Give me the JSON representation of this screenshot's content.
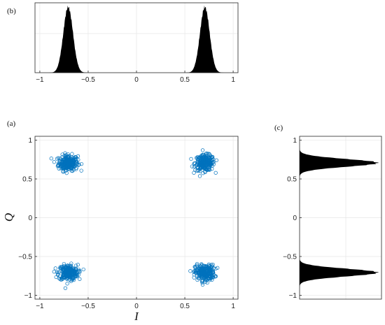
{
  "figure": {
    "panel_labels": {
      "a": "(a)",
      "b": "(b)",
      "c": "(c)"
    },
    "colors": {
      "scatter": "#0072BD",
      "density": "#000000",
      "grid": "#e6e6e6",
      "axis": "#262626"
    }
  },
  "chart_data": [
    {
      "id": "a",
      "type": "scatter",
      "title": "",
      "xlabel": "I",
      "ylabel": "Q",
      "xlim": [
        -1.05,
        1.05
      ],
      "ylim": [
        -1.05,
        1.05
      ],
      "xticks": [
        -1,
        -0.5,
        0,
        0.5,
        1
      ],
      "yticks": [
        -1,
        -0.5,
        0,
        0.5,
        1
      ],
      "xtick_labels": [
        "−1",
        "−0.5",
        "0",
        "0.5",
        "1"
      ],
      "ytick_labels": [
        "−1",
        "−0.5",
        "0",
        "0.5",
        "1"
      ],
      "grid": true,
      "marker": "open circle",
      "clusters": [
        {
          "center": [
            -0.707,
            0.707
          ],
          "spread": 0.05
        },
        {
          "center": [
            0.707,
            0.707
          ],
          "spread": 0.05
        },
        {
          "center": [
            -0.707,
            -0.707
          ],
          "spread": 0.05
        },
        {
          "center": [
            0.707,
            -0.707
          ],
          "spread": 0.05
        }
      ]
    },
    {
      "id": "b",
      "type": "area",
      "title": "",
      "xlabel": "",
      "ylabel": "",
      "xlim": [
        -1.05,
        1.05
      ],
      "xticks": [
        -1,
        -0.5,
        0,
        0.5,
        1
      ],
      "xtick_labels": [
        "−1",
        "−0.5",
        "0",
        "0.5",
        "1"
      ],
      "grid": true,
      "peaks": [
        {
          "center": -0.707,
          "spread": 0.05
        },
        {
          "center": 0.707,
          "spread": 0.05
        }
      ]
    },
    {
      "id": "c",
      "type": "area",
      "orientation": "horizontal",
      "title": "",
      "xlabel": "",
      "ylabel": "",
      "ylim": [
        -1.05,
        1.05
      ],
      "yticks": [
        -1,
        -0.5,
        0,
        0.5,
        1
      ],
      "ytick_labels": [
        "−1",
        "−0.5",
        "0",
        "0.5",
        "1"
      ],
      "grid": true,
      "peaks": [
        {
          "center": 0.707,
          "spread": 0.05
        },
        {
          "center": -0.707,
          "spread": 0.05
        }
      ]
    }
  ]
}
